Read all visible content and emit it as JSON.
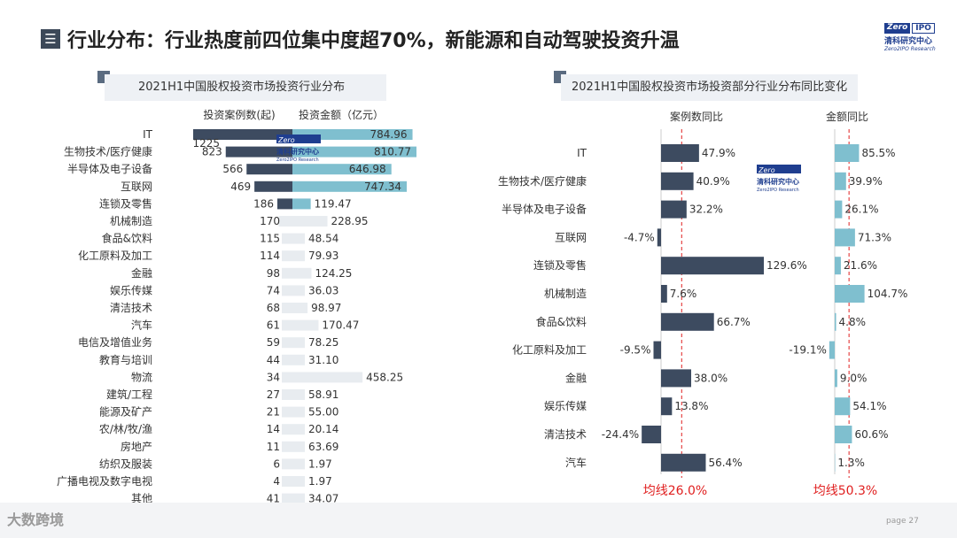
{
  "header": {
    "title": "行业分布：行业热度前四位集中度超70%，新能源和自动驾驶投资升温",
    "logo_top": "Zero",
    "logo_right": "IPO",
    "logo_cn": "清科研究中心",
    "logo_en": "Zero2IPO Research"
  },
  "footer": {
    "brand": "大数跨境",
    "page_label": "page",
    "page_number": "27"
  },
  "colors": {
    "dark_bar": "#3d4b60",
    "light_bar": "#7fbfcf",
    "faint_bar": "#e8ecf0",
    "red": "#e02020"
  },
  "chart_data": [
    {
      "type": "bar",
      "title": "2021H1中国股权投资市场投资行业分布",
      "left_header": "投资案例数(起)",
      "right_header": "投资金额（亿元）",
      "categories": [
        "IT",
        "生物技术/医疗健康",
        "半导体及电子设备",
        "互联网",
        "连锁及零售",
        "机械制造",
        "食品&饮料",
        "化工原料及加工",
        "金融",
        "娱乐传媒",
        "清洁技术",
        "汽车",
        "电信及增值业务",
        "教育与培训",
        "物流",
        "建筑/工程",
        "能源及矿产",
        "农/林/牧/渔",
        "房地产",
        "纺织及服装",
        "广播电视及数字电视",
        "其他"
      ],
      "series": [
        {
          "name": "投资案例数(起)",
          "values": [
            1225,
            823,
            566,
            469,
            186,
            170,
            115,
            114,
            98,
            74,
            68,
            61,
            59,
            44,
            34,
            27,
            21,
            14,
            11,
            6,
            4,
            41
          ]
        },
        {
          "name": "投资金额（亿元）",
          "values": [
            784.96,
            810.77,
            646.98,
            747.34,
            119.47,
            228.95,
            48.54,
            79.93,
            124.25,
            36.03,
            98.97,
            170.47,
            78.25,
            31.1,
            458.25,
            58.91,
            55.0,
            20.14,
            63.69,
            1.97,
            1.97,
            34.07
          ]
        }
      ],
      "labels_cases": [
        "1225",
        "823",
        "566",
        "469",
        "186",
        "170",
        "115",
        "114",
        "98",
        "74",
        "68",
        "61",
        "59",
        "44",
        "34",
        "27",
        "21",
        "14",
        "11",
        "6",
        "4",
        "41"
      ],
      "labels_amount": [
        "784.96",
        "810.77",
        "646.98",
        "747.34",
        "119.47",
        "228.95",
        "48.54",
        "79.93",
        "124.25",
        "36.03",
        "98.97",
        "170.47",
        "78.25",
        "31.10",
        "458.25",
        "58.91",
        "55.00",
        "20.14",
        "63.69",
        "1.97",
        "1.97",
        "34.07"
      ]
    },
    {
      "type": "bar",
      "title": "2021H1中国股权投资市场投资部分行业分布同比变化",
      "left_header": "案例数同比",
      "right_header": "金额同比",
      "categories": [
        "IT",
        "生物技术/医疗健康",
        "半导体及电子设备",
        "互联网",
        "连锁及零售",
        "机械制造",
        "食品&饮料",
        "化工原料及加工",
        "金融",
        "娱乐传媒",
        "清洁技术",
        "汽车"
      ],
      "series": [
        {
          "name": "案例数同比",
          "values": [
            47.9,
            40.9,
            32.2,
            -4.7,
            129.6,
            7.6,
            66.7,
            -9.5,
            38.0,
            13.8,
            -24.4,
            56.4
          ]
        },
        {
          "name": "金额同比",
          "values": [
            85.5,
            39.9,
            26.1,
            71.3,
            21.6,
            104.7,
            4.8,
            -19.1,
            9.0,
            54.1,
            60.6,
            1.3
          ]
        }
      ],
      "labels_cases": [
        "47.9%",
        "40.9%",
        "32.2%",
        "-4.7%",
        "129.6%",
        "7.6%",
        "66.7%",
        "-9.5%",
        "38.0%",
        "13.8%",
        "-24.4%",
        "56.4%"
      ],
      "labels_amount": [
        "85.5%",
        "39.9%",
        "26.1%",
        "71.3%",
        "21.6%",
        "104.7%",
        "4.8%",
        "-19.1%",
        "9.0%",
        "54.1%",
        "60.6%",
        "1.3%"
      ],
      "avg_cases_label": "均线26.0%",
      "avg_amount_label": "均线50.3%",
      "avg_cases": 26.0,
      "avg_amount": 50.3
    }
  ]
}
